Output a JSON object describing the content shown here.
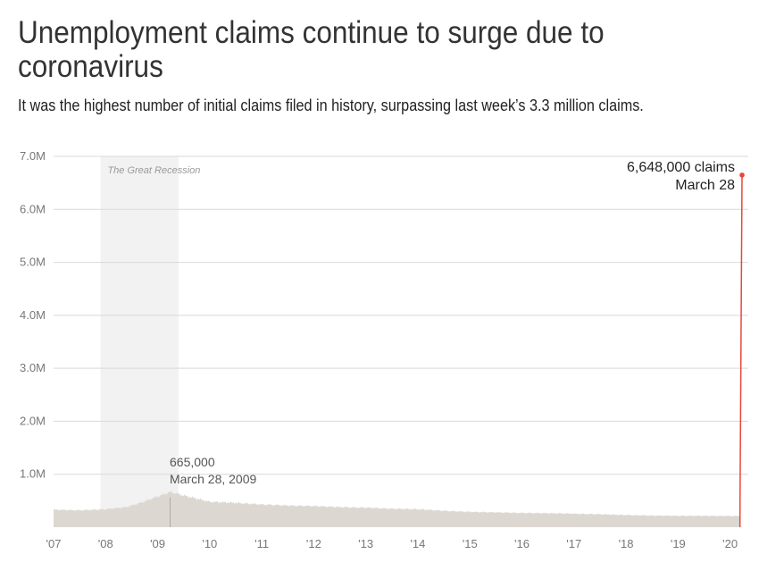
{
  "title": "Unemployment claims continue to surge due to coronavirus",
  "subtitle": "It was the highest number of initial claims filed in history, surpassing last week’s 3.3 million claims.",
  "colors": {
    "area": "#dcd8d1",
    "highlight_line": "#e8463a",
    "recession_band": "#f2f2f2",
    "grid": "#d9d9d9",
    "axis_text": "#777777"
  },
  "chart_data": {
    "type": "area",
    "title": "Unemployment claims continue to surge due to coronavirus",
    "subtitle": "It was the highest number of initial claims filed in history, surpassing last week’s 3.3 million claims.",
    "xlabel": "",
    "ylabel": "",
    "xlim": [
      2007.0,
      2020.35
    ],
    "ylim": [
      0,
      7000000
    ],
    "grid": true,
    "y_ticks": [
      {
        "value": 1000000,
        "label": "1.0M"
      },
      {
        "value": 2000000,
        "label": "2.0M"
      },
      {
        "value": 3000000,
        "label": "3.0M"
      },
      {
        "value": 4000000,
        "label": "4.0M"
      },
      {
        "value": 5000000,
        "label": "5.0M"
      },
      {
        "value": 6000000,
        "label": "6.0M"
      },
      {
        "value": 7000000,
        "label": "7.0M"
      }
    ],
    "x_ticks": [
      {
        "value": 2007,
        "label": "'07"
      },
      {
        "value": 2008,
        "label": "'08"
      },
      {
        "value": 2009,
        "label": "'09"
      },
      {
        "value": 2010,
        "label": "'10"
      },
      {
        "value": 2011,
        "label": "'11"
      },
      {
        "value": 2012,
        "label": "'12"
      },
      {
        "value": 2013,
        "label": "'13"
      },
      {
        "value": 2014,
        "label": "'14"
      },
      {
        "value": 2015,
        "label": "'15"
      },
      {
        "value": 2016,
        "label": "'16"
      },
      {
        "value": 2017,
        "label": "'17"
      },
      {
        "value": 2018,
        "label": "'18"
      },
      {
        "value": 2019,
        "label": "'19"
      },
      {
        "value": 2020,
        "label": "'20"
      }
    ],
    "series": [
      {
        "x": [
          2007.0,
          2007.5,
          2008.0,
          2008.4,
          2008.7,
          2009.0,
          2009.24,
          2009.5,
          2009.75,
          2010.0,
          2010.5,
          2011.0,
          2011.5,
          2012.0,
          2012.5,
          2013.0,
          2013.5,
          2014.0,
          2014.5,
          2015.0,
          2015.5,
          2016.0,
          2016.5,
          2017.0,
          2017.5,
          2018.0,
          2018.5,
          2019.0,
          2019.5,
          2020.0,
          2020.18
        ],
        "y": [
          330000,
          320000,
          340000,
          380000,
          470000,
          580000,
          665000,
          600000,
          540000,
          480000,
          460000,
          430000,
          410000,
          400000,
          380000,
          370000,
          350000,
          340000,
          310000,
          290000,
          280000,
          270000,
          265000,
          255000,
          245000,
          230000,
          220000,
          215000,
          215000,
          212000,
          211000
        ]
      },
      {
        "name": "",
        "x": [
          2020.19,
          2020.21,
          2020.23
        ],
        "y": [
          281000,
          3307000,
          6648000
        ]
      }
    ],
    "shaded_regions": [
      {
        "label": "The Great Recession",
        "x_start": 2007.9,
        "x_end": 2009.4
      }
    ],
    "annotations": [
      {
        "x": 2009.24,
        "y": 665000,
        "value_label": "665,000",
        "date_label": "March 28, 2009"
      },
      {
        "x": 2020.23,
        "y": 6648000,
        "value_label": "6,648,000 claims",
        "date_label": "March 28"
      }
    ]
  }
}
